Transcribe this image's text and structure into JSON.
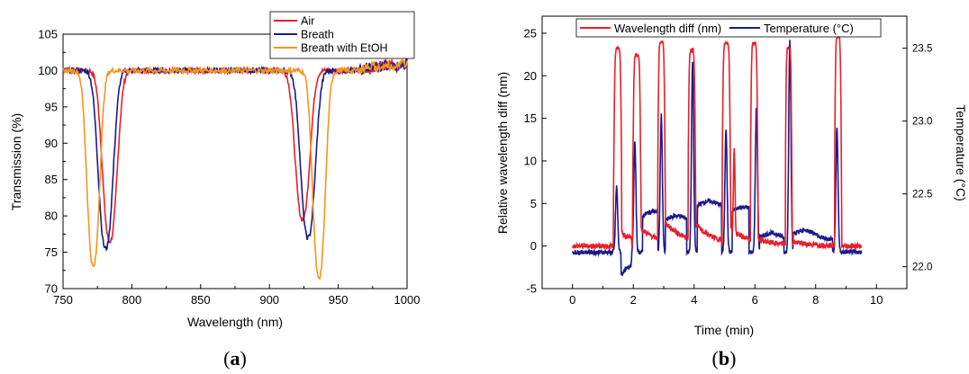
{
  "chart_data": [
    {
      "type": "line",
      "panel_label": "a",
      "xlabel": "Wavelength (nm)",
      "ylabel": "Transmission (%)",
      "xlim": [
        750,
        1000
      ],
      "ylim": [
        70,
        105
      ],
      "x_ticks": [
        "750",
        "800",
        "850",
        "900",
        "950",
        "1000"
      ],
      "y_ticks": [
        "70",
        "75",
        "80",
        "85",
        "90",
        "95",
        "100",
        "105"
      ],
      "grid": false,
      "legend_position": "top-right",
      "series": [
        {
          "name": "Air",
          "color": "#e8202a",
          "dips": [
            {
              "center": 784,
              "depth": 23.5,
              "width": 7
            },
            {
              "center": 924,
              "depth": 20.5,
              "width": 7
            }
          ]
        },
        {
          "name": "Breath",
          "color": "#1a1a8c",
          "dips": [
            {
              "center": 781,
              "depth": 24.5,
              "width": 7
            },
            {
              "center": 928,
              "depth": 23.0,
              "width": 7
            }
          ]
        },
        {
          "name": "Breath with EtOH",
          "color": "#f7941d",
          "dips": [
            {
              "center": 772,
              "depth": 27.0,
              "width": 6
            },
            {
              "center": 936,
              "depth": 28.7,
              "width": 6
            }
          ]
        }
      ]
    },
    {
      "type": "line",
      "panel_label": "b",
      "xlabel": "Time (min)",
      "ylabel": "Relative wavelength diff (nm)",
      "y2label": "Temperature (°C)",
      "xlim": [
        -1,
        11
      ],
      "ylim": [
        -5,
        27
      ],
      "y2lim": [
        21.85,
        23.72
      ],
      "x_ticks": [
        "0",
        "2",
        "4",
        "6",
        "8",
        "10"
      ],
      "y_ticks": [
        "-5",
        "0",
        "5",
        "10",
        "15",
        "20",
        "25"
      ],
      "y2_ticks": [
        "22.0",
        "22.5",
        "23.0",
        "23.5"
      ],
      "grid": false,
      "legend_position": "top",
      "series": [
        {
          "name": "Wavelength diff (nm)",
          "color": "#e8202a",
          "axis": "left",
          "baseline": 0,
          "peaks": [
            {
              "start": 1.35,
              "end": 1.62,
              "peak": 23.2
            },
            {
              "start": 1.98,
              "end": 2.25,
              "peak": 22.5
            },
            {
              "start": 2.8,
              "end": 3.05,
              "peak": 24.0
            },
            {
              "start": 3.8,
              "end": 4.05,
              "peak": 23.0
            },
            {
              "start": 4.92,
              "end": 5.2,
              "peak": 23.9
            },
            {
              "start": 5.85,
              "end": 6.1,
              "peak": 23.8
            },
            {
              "start": 7.0,
              "end": 7.22,
              "peak": 23.2
            },
            {
              "start": 8.62,
              "end": 8.85,
              "peak": 24.6
            }
          ]
        },
        {
          "name": "Temperature (°C)",
          "color": "#1a1a8c",
          "axis": "right",
          "baseline": 22.1,
          "peaks": [
            {
              "time": 1.45,
              "peak": 22.55
            },
            {
              "time": 2.05,
              "peak": 22.85
            },
            {
              "time": 2.92,
              "peak": 23.04
            },
            {
              "time": 3.95,
              "peak": 23.4
            },
            {
              "time": 5.05,
              "peak": 22.95
            },
            {
              "time": 6.05,
              "peak": 23.1
            },
            {
              "time": 7.15,
              "peak": 23.55
            },
            {
              "time": 8.7,
              "peak": 22.95
            }
          ]
        }
      ]
    }
  ]
}
